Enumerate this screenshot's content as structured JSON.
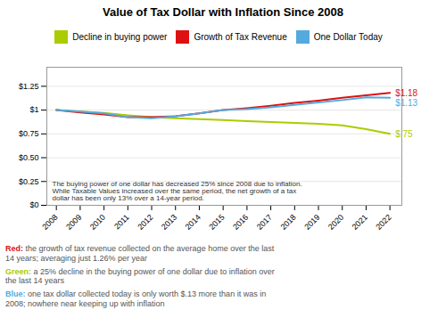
{
  "chart_data": {
    "type": "line",
    "title": "Value of Tax Dollar with Inflation Since 2008",
    "x": [
      2008,
      2009,
      2010,
      2011,
      2012,
      2013,
      2014,
      2015,
      2016,
      2017,
      2018,
      2019,
      2020,
      2021,
      2022
    ],
    "series": [
      {
        "name": "Decline in buying power",
        "color": "#aacc00",
        "end_label": "$.75",
        "values": [
          1.0,
          0.985,
          0.97,
          0.945,
          0.925,
          0.915,
          0.905,
          0.895,
          0.885,
          0.875,
          0.865,
          0.855,
          0.84,
          0.8,
          0.75
        ]
      },
      {
        "name": "Growth of Tax Revenue",
        "color": "#dd1111",
        "end_label": "$1.18",
        "values": [
          1.0,
          0.975,
          0.955,
          0.925,
          0.925,
          0.935,
          0.965,
          1.0,
          1.02,
          1.045,
          1.075,
          1.1,
          1.13,
          1.155,
          1.18
        ]
      },
      {
        "name": "One Dollar Today",
        "color": "#55aadd",
        "end_label": "$1.13",
        "values": [
          1.0,
          0.985,
          0.965,
          0.925,
          0.915,
          0.935,
          0.965,
          1.0,
          1.01,
          1.03,
          1.055,
          1.08,
          1.105,
          1.135,
          1.13
        ]
      }
    ],
    "xlim": [
      2007.6,
      2022.5
    ],
    "xticks": [
      2008,
      2009,
      2010,
      2011,
      2012,
      2013,
      2014,
      2015,
      2016,
      2017,
      2018,
      2019,
      2020,
      2021,
      2022
    ],
    "ylim": [
      0,
      1.45
    ],
    "yticks": [
      {
        "value": 0,
        "label": "$0"
      },
      {
        "value": 0.25,
        "label": "$0.25"
      },
      {
        "value": 0.5,
        "label": "$0.50"
      },
      {
        "value": 0.75,
        "label": "$0.75"
      },
      {
        "value": 1.0,
        "label": "$1"
      },
      {
        "value": 1.25,
        "label": "$1.25"
      }
    ],
    "grid": true,
    "legend": "top",
    "annotation": "The buying power of one dollar has decreased 25% since 2008 due to inflation.\nWhile Taxable Values increased over the same period, the net growth of a tax\ndollar has been only 13% over a 14-year period.",
    "footnotes": [
      {
        "label": "Red:",
        "color": "#dd1111",
        "text": " the growth of tax revenue collected on the average home over the last\n14 years; averaging just 1.26% per year"
      },
      {
        "label": "Green:",
        "color": "#aacc00",
        "text": " a 25% decline in the buying power of one dollar due to inflation over\nthe last 14 years"
      },
      {
        "label": "Blue:",
        "color": "#55aadd",
        "text": " one tax dollar collected today is only worth $.13 more than it was in\n2008; nowhere near keeping up with inflation"
      }
    ]
  }
}
